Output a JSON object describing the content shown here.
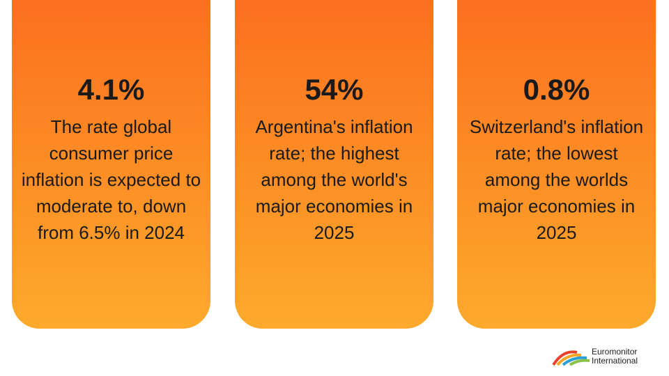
{
  "cards": [
    {
      "stat": "4.1%",
      "description": "The rate global consumer price inflation is expected to moderate to, down from 6.5% in 2024"
    },
    {
      "stat": "54%",
      "description": "Argentina's inflation rate; the highest among the world's major economies in 2025"
    },
    {
      "stat": "0.8%",
      "description": "Switzerland's inflation rate; the lowest among the worlds major economies in 2025"
    }
  ],
  "logo": {
    "line1": "Euromonitor",
    "line2": "International"
  }
}
